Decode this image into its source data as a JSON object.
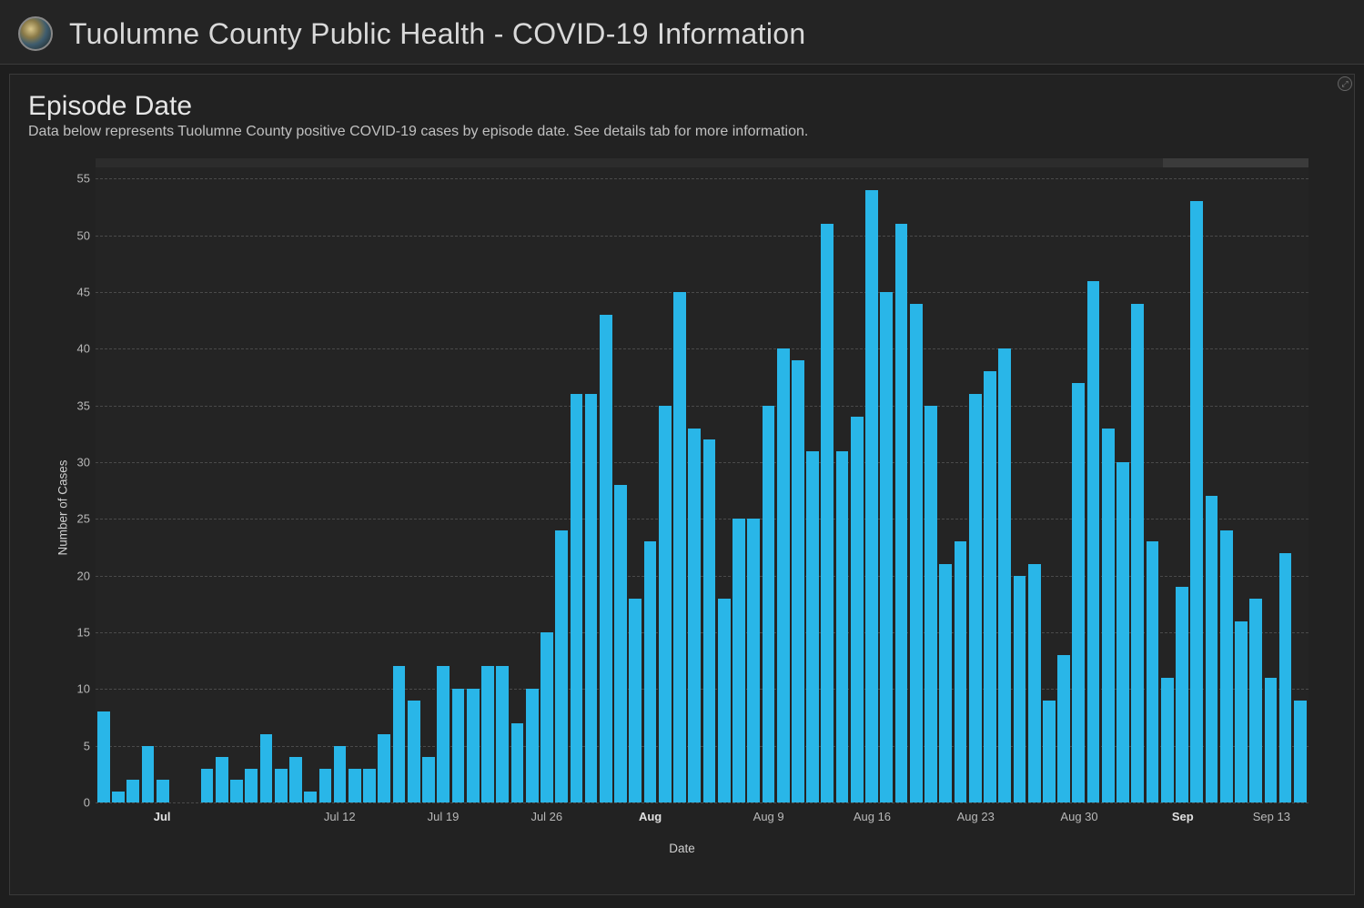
{
  "header": {
    "title": "Tuolumne County Public Health - COVID-19 Information"
  },
  "panel": {
    "title": "Episode Date",
    "subtitle": "Data below represents Tuolumne County positive COVID-19 cases by episode date. See details tab for more information.",
    "expand_glyph": "⤢"
  },
  "chart": {
    "type": "bar",
    "y_label": "Number of Cases",
    "x_label": "Date",
    "ylim": [
      0,
      56
    ],
    "y_ticks": [
      0,
      5,
      10,
      15,
      20,
      25,
      30,
      35,
      40,
      45,
      50,
      55
    ],
    "bar_color": "#29b6e8",
    "grid_color": "#4a4a4a",
    "background_color": "#242424",
    "x_ticks": [
      {
        "index": 4,
        "label": "Jul",
        "bold": true
      },
      {
        "index": 16,
        "label": "Jul 12",
        "bold": false
      },
      {
        "index": 23,
        "label": "Jul 19",
        "bold": false
      },
      {
        "index": 30,
        "label": "Jul 26",
        "bold": false
      },
      {
        "index": 37,
        "label": "Aug",
        "bold": true
      },
      {
        "index": 45,
        "label": "Aug 9",
        "bold": false
      },
      {
        "index": 52,
        "label": "Aug 16",
        "bold": false
      },
      {
        "index": 59,
        "label": "Aug 23",
        "bold": false
      },
      {
        "index": 66,
        "label": "Aug 30",
        "bold": false
      },
      {
        "index": 73,
        "label": "Sep",
        "bold": true
      },
      {
        "index": 79,
        "label": "Sep 13",
        "bold": false
      }
    ],
    "values": [
      8,
      1,
      2,
      5,
      2,
      0,
      0,
      3,
      4,
      2,
      3,
      6,
      3,
      4,
      1,
      3,
      5,
      3,
      3,
      6,
      12,
      9,
      4,
      12,
      10,
      10,
      12,
      12,
      7,
      10,
      15,
      24,
      36,
      36,
      43,
      28,
      18,
      23,
      35,
      45,
      33,
      32,
      18,
      25,
      25,
      35,
      40,
      39,
      31,
      51,
      31,
      34,
      54,
      45,
      51,
      44,
      35,
      21,
      23,
      36,
      38,
      40,
      20,
      21,
      9,
      13,
      37,
      46,
      33,
      30,
      44,
      23,
      11,
      19,
      53,
      27,
      24,
      16,
      18,
      11,
      22,
      9
    ],
    "scroll_thumb_width_pct": 12
  }
}
